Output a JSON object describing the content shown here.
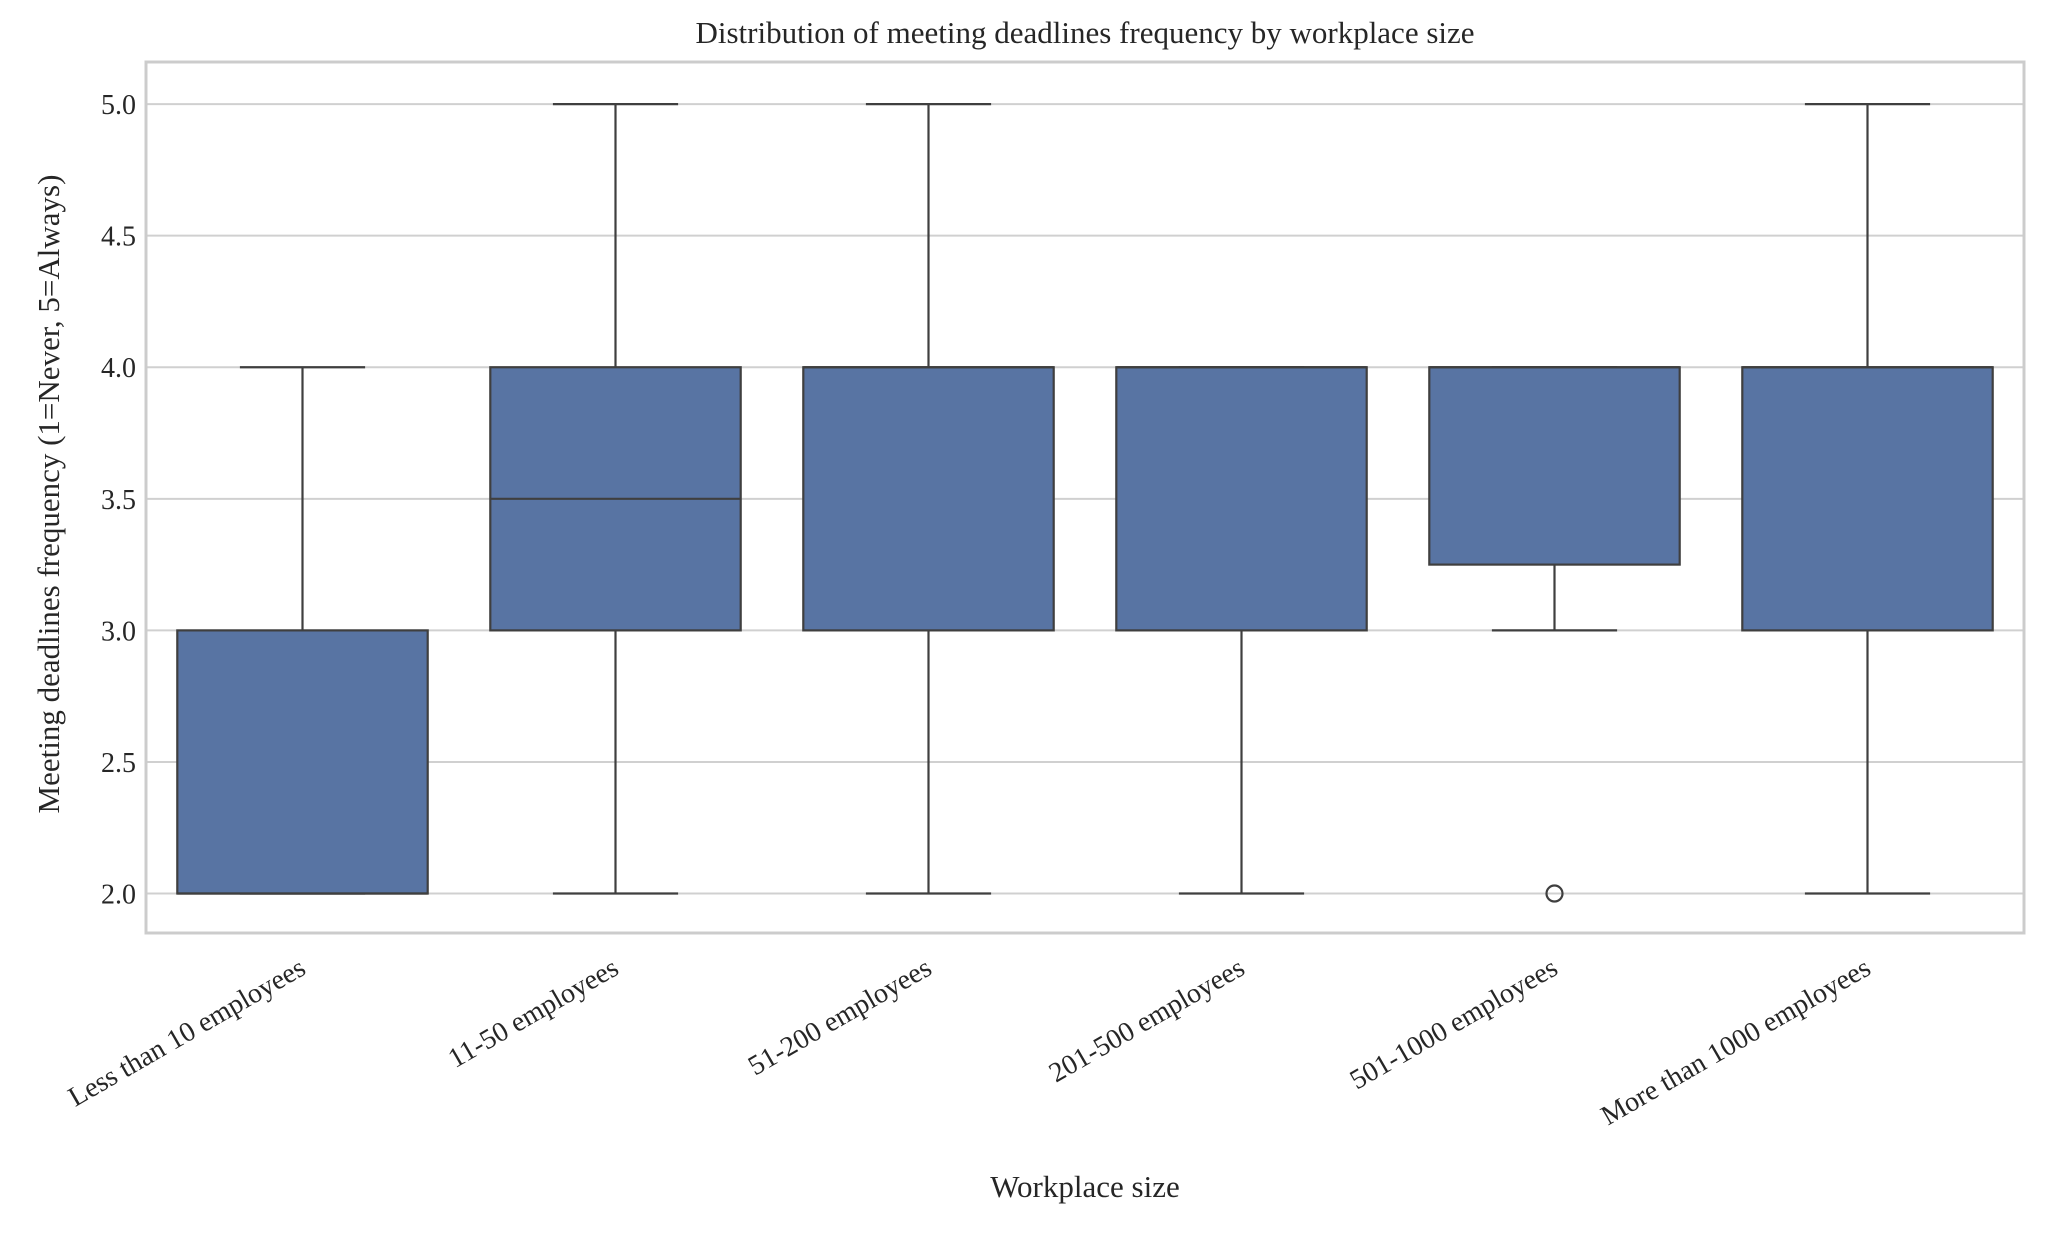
{
  "chart_data": {
    "type": "box",
    "title": "Distribution of meeting deadlines frequency by workplace size",
    "xlabel": "Workplace size",
    "ylabel": "Meeting deadlines frequency (1=Never, 5=Always)",
    "ylim": [
      1.85,
      5.16
    ],
    "yticks": [
      "2.0",
      "2.5",
      "3.0",
      "3.5",
      "4.0",
      "4.5",
      "5.0"
    ],
    "grid": true,
    "box_color": "#5874a3",
    "line_color": "#3f3f3f",
    "grid_color": "#d0d0d0",
    "frame_color": "#cccccc",
    "categories": [
      "Less than 10 employees",
      "11-50 employees",
      "51-200 employees",
      "201-500 employees",
      "501-1000 employees",
      "More than 1000 employees"
    ],
    "boxes": [
      {
        "whisker_low": 2,
        "q1": 2,
        "median": 2,
        "q3": 3,
        "whisker_high": 4,
        "outliers": []
      },
      {
        "whisker_low": 2,
        "q1": 3,
        "median": 3.5,
        "q3": 4,
        "whisker_high": 5,
        "outliers": []
      },
      {
        "whisker_low": 2,
        "q1": 3,
        "median": 4,
        "q3": 4,
        "whisker_high": 5,
        "outliers": []
      },
      {
        "whisker_low": 2,
        "q1": 3,
        "median": 4,
        "q3": 4,
        "whisker_high": 4,
        "outliers": []
      },
      {
        "whisker_low": 3,
        "q1": 3.25,
        "median": 4,
        "q3": 4,
        "whisker_high": 4,
        "outliers": [
          2
        ]
      },
      {
        "whisker_low": 2,
        "q1": 3,
        "median": 4,
        "q3": 4,
        "whisker_high": 5,
        "outliers": []
      }
    ]
  }
}
